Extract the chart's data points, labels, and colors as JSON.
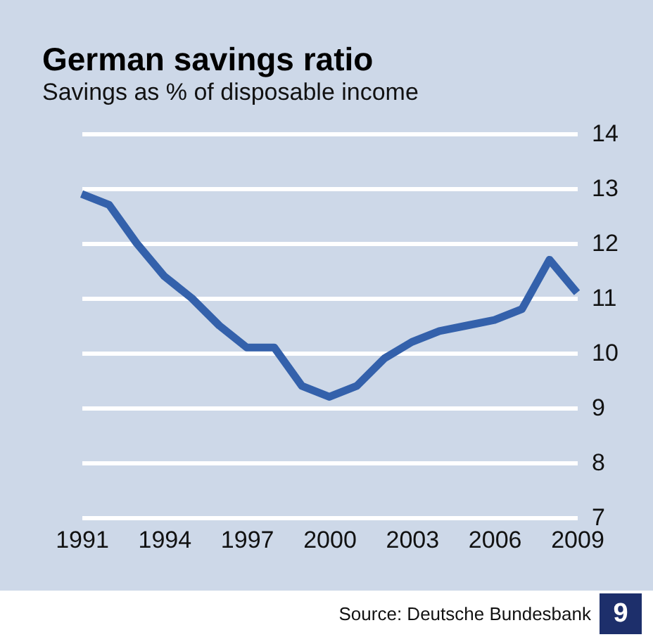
{
  "chart_data": {
    "type": "line",
    "title": "German savings ratio",
    "subtitle": "Savings as % of disposable income",
    "x": [
      1991,
      1992,
      1993,
      1994,
      1995,
      1996,
      1997,
      1998,
      1999,
      2000,
      2001,
      2002,
      2003,
      2004,
      2005,
      2006,
      2007,
      2008,
      2009
    ],
    "series": [
      {
        "color": "#3461ab",
        "values": [
          12.9,
          12.7,
          12.0,
          11.4,
          11.0,
          10.5,
          10.1,
          10.1,
          9.4,
          9.2,
          9.4,
          9.9,
          10.2,
          10.4,
          10.5,
          10.6,
          10.8,
          11.7,
          11.1
        ]
      }
    ],
    "xlim": [
      1991,
      2009
    ],
    "xticks": [
      1991,
      1994,
      1997,
      2000,
      2003,
      2006,
      2009
    ],
    "ylim": [
      7,
      14
    ],
    "yticks": [
      7,
      8,
      9,
      10,
      11,
      12,
      13,
      14
    ],
    "grid": "y",
    "annotations": [
      "Source: Deutsche Bundesbank",
      "9"
    ]
  }
}
